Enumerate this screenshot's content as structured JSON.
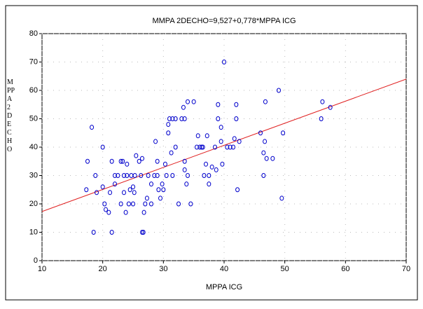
{
  "chart_data": {
    "type": "scatter",
    "title": "MMPA 2DECHO=9,527+0,778*MPPA ICG",
    "x_label": "MPPA ICG",
    "y_label": "MPPA2DECHO",
    "color": "#0000cc",
    "x": [
      17.5,
      17.3,
      18.2,
      18.5,
      18.8,
      19,
      20,
      20,
      20.3,
      20.5,
      21,
      21.2,
      21.5,
      21.5,
      22,
      22,
      22.5,
      23,
      23,
      23.3,
      23.5,
      23.5,
      23.8,
      24,
      24,
      24.3,
      24.5,
      24.7,
      25,
      25,
      25.2,
      25.3,
      25.5,
      26,
      26.3,
      26.5,
      26.5,
      26.7,
      26.8,
      27,
      27.3,
      27.5,
      28,
      28,
      28.5,
      28.7,
      29,
      29,
      29.2,
      29.5,
      29.8,
      30,
      30.3,
      30.5,
      30.8,
      30.8,
      31,
      31.3,
      31.5,
      31.5,
      32,
      32,
      32.5,
      33,
      33.3,
      33.5,
      33.5,
      33.5,
      33.8,
      34,
      34,
      34.5,
      35,
      35.5,
      35.7,
      36,
      36.3,
      36.5,
      36.7,
      37,
      37.2,
      37.5,
      37.5,
      38,
      38.5,
      38.7,
      39,
      39,
      39.5,
      39.5,
      39.7,
      40,
      40.5,
      41,
      41.5,
      41.7,
      42,
      42,
      42.2,
      42.5,
      46,
      46.5,
      46.5,
      46.7,
      46.8,
      47,
      48,
      49,
      49.5,
      49.7,
      56,
      56.2,
      57.5
    ],
    "values": [
      35,
      25,
      47,
      10,
      30,
      24,
      40,
      26,
      20,
      18,
      17,
      24,
      35,
      10,
      27,
      30,
      30,
      20,
      35,
      35,
      30,
      24,
      17,
      34,
      30,
      20,
      25,
      30,
      20,
      26,
      24,
      30,
      37,
      35,
      30,
      36,
      10,
      10,
      17,
      20,
      22,
      30,
      27,
      20,
      30,
      42,
      35,
      30,
      25,
      22,
      27,
      25,
      34,
      30,
      48,
      45,
      50,
      38,
      30,
      50,
      40,
      50,
      20,
      50,
      54,
      50,
      35,
      32,
      27,
      30,
      56,
      20,
      56,
      40,
      44,
      40,
      40,
      40,
      30,
      34,
      44,
      30,
      27,
      33,
      40,
      32,
      50,
      55,
      42,
      47,
      34,
      70,
      40,
      40,
      40,
      43,
      55,
      50,
      25,
      42,
      45,
      30,
      38,
      42,
      56,
      36,
      36,
      60,
      22,
      45,
      50,
      56,
      54
    ],
    "fit": {
      "x": [
        10,
        70
      ],
      "values": [
        17.307,
        63.987
      ],
      "color": "#e02020"
    },
    "xlim": [
      10,
      70
    ],
    "ylim": [
      0,
      80
    ],
    "xticks": [
      10,
      20,
      30,
      40,
      50,
      60,
      70
    ],
    "yticks": [
      0,
      10,
      20,
      30,
      40,
      50,
      60,
      70,
      80
    ],
    "grid": true
  }
}
